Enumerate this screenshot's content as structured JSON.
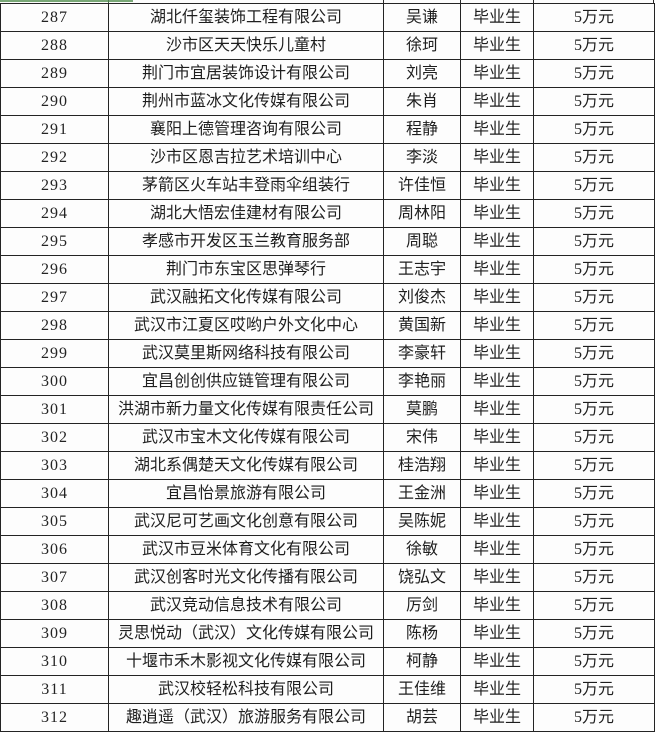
{
  "colors": {
    "gridline": "#242424",
    "text": "#1e1e1e",
    "background": "#fdfdfd",
    "top_remnant_green": "#79a877"
  },
  "table": {
    "columns": [
      "no",
      "company",
      "name",
      "status",
      "amount"
    ],
    "rows": [
      {
        "no": "287",
        "company": "湖北仟玺装饰工程有限公司",
        "name": "吴谦",
        "status": "毕业生",
        "amount": "5万元"
      },
      {
        "no": "288",
        "company": "沙市区天天快乐儿童村",
        "name": "徐珂",
        "status": "毕业生",
        "amount": "5万元"
      },
      {
        "no": "289",
        "company": "荆门市宜居装饰设计有限公司",
        "name": "刘亮",
        "status": "毕业生",
        "amount": "5万元"
      },
      {
        "no": "290",
        "company": "荆州市蓝冰文化传媒有限公司",
        "name": "朱肖",
        "status": "毕业生",
        "amount": "5万元"
      },
      {
        "no": "291",
        "company": "襄阳上德管理咨询有限公司",
        "name": "程静",
        "status": "毕业生",
        "amount": "5万元"
      },
      {
        "no": "292",
        "company": "沙市区恩吉拉艺术培训中心",
        "name": "李淡",
        "status": "毕业生",
        "amount": "5万元"
      },
      {
        "no": "293",
        "company": "茅箭区火车站丰登雨伞组装行",
        "name": "许佳恒",
        "status": "毕业生",
        "amount": "5万元"
      },
      {
        "no": "294",
        "company": "湖北大悟宏佳建材有限公司",
        "name": "周林阳",
        "status": "毕业生",
        "amount": "5万元"
      },
      {
        "no": "295",
        "company": "孝感市开发区玉兰教育服务部",
        "name": "周聪",
        "status": "毕业生",
        "amount": "5万元"
      },
      {
        "no": "296",
        "company": "荆门市东宝区思弹琴行",
        "name": "王志宇",
        "status": "毕业生",
        "amount": "5万元"
      },
      {
        "no": "297",
        "company": "武汉融拓文化传媒有限公司",
        "name": "刘俊杰",
        "status": "毕业生",
        "amount": "5万元"
      },
      {
        "no": "298",
        "company": "武汉市江夏区哎哟户外文化中心",
        "name": "黄国新",
        "status": "毕业生",
        "amount": "5万元"
      },
      {
        "no": "299",
        "company": "武汉莫里斯网络科技有限公司",
        "name": "李豪轩",
        "status": "毕业生",
        "amount": "5万元"
      },
      {
        "no": "300",
        "company": "宜昌创创供应链管理有限公司",
        "name": "李艳丽",
        "status": "毕业生",
        "amount": "5万元"
      },
      {
        "no": "301",
        "company": "洪湖市新力量文化传媒有限责任公司",
        "name": "莫鹏",
        "status": "毕业生",
        "amount": "5万元"
      },
      {
        "no": "302",
        "company": "武汉市宝木文化传媒有限公司",
        "name": "宋伟",
        "status": "毕业生",
        "amount": "5万元"
      },
      {
        "no": "303",
        "company": "湖北系偶楚天文化传媒有限公司",
        "name": "桂浩翔",
        "status": "毕业生",
        "amount": "5万元"
      },
      {
        "no": "304",
        "company": "宜昌怡景旅游有限公司",
        "name": "王金洲",
        "status": "毕业生",
        "amount": "5万元"
      },
      {
        "no": "305",
        "company": "武汉尼可艺画文化创意有限公司",
        "name": "吴陈妮",
        "status": "毕业生",
        "amount": "5万元"
      },
      {
        "no": "306",
        "company": "武汉市豆米体育文化有限公司",
        "name": "徐敏",
        "status": "毕业生",
        "amount": "5万元"
      },
      {
        "no": "307",
        "company": "武汉创客时光文化传播有限公司",
        "name": "饶弘文",
        "status": "毕业生",
        "amount": "5万元"
      },
      {
        "no": "308",
        "company": "武汉竞动信息技术有限公司",
        "name": "厉剑",
        "status": "毕业生",
        "amount": "5万元"
      },
      {
        "no": "309",
        "company": "灵思悦动（武汉）文化传媒有限公司",
        "name": "陈杨",
        "status": "毕业生",
        "amount": "5万元"
      },
      {
        "no": "310",
        "company": "十堰市禾木影视文化传媒有限公司",
        "name": "柯静",
        "status": "毕业生",
        "amount": "5万元"
      },
      {
        "no": "311",
        "company": "武汉校轻松科技有限公司",
        "name": "王佳维",
        "status": "毕业生",
        "amount": "5万元"
      },
      {
        "no": "312",
        "company": "趣逍遥（武汉）旅游服务有限公司",
        "name": "胡芸",
        "status": "毕业生",
        "amount": "5万元"
      }
    ]
  }
}
